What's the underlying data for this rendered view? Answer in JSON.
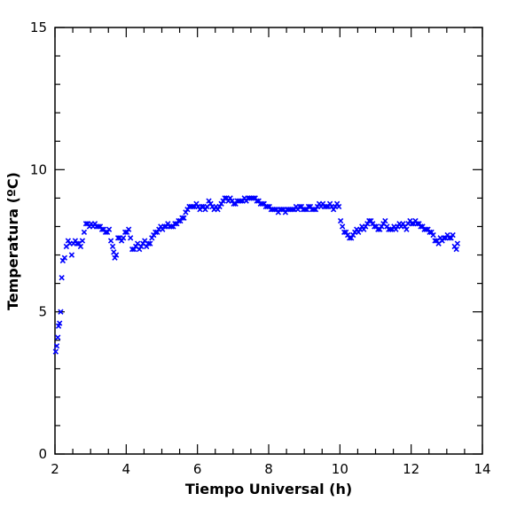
{
  "chart_data": {
    "type": "scatter",
    "xlabel": "Tiempo Universal (h)",
    "ylabel": "Temperatura (ºC)",
    "xlim": [
      2,
      14
    ],
    "ylim": [
      0,
      15
    ],
    "x_ticks": [
      2,
      4,
      6,
      8,
      10,
      12,
      14
    ],
    "y_ticks": [
      0,
      5,
      10,
      15
    ],
    "marker": "x",
    "grid": false,
    "color": "#0000ff",
    "series": [
      {
        "points": [
          [
            2.02,
            3.6
          ],
          [
            2.05,
            3.8
          ],
          [
            2.08,
            4.1
          ],
          [
            2.1,
            4.5
          ],
          [
            2.13,
            4.6
          ],
          [
            2.16,
            5.0
          ],
          [
            2.19,
            6.2
          ],
          [
            2.22,
            6.8
          ],
          [
            2.27,
            6.9
          ],
          [
            2.32,
            7.3
          ],
          [
            2.37,
            7.5
          ],
          [
            2.42,
            7.4
          ],
          [
            2.47,
            7.0
          ],
          [
            2.52,
            7.4
          ],
          [
            2.57,
            7.5
          ],
          [
            2.62,
            7.4
          ],
          [
            2.67,
            7.4
          ],
          [
            2.72,
            7.3
          ],
          [
            2.77,
            7.5
          ],
          [
            2.82,
            7.8
          ],
          [
            2.87,
            8.1
          ],
          [
            2.92,
            8.1
          ],
          [
            2.97,
            8.0
          ],
          [
            3.02,
            8.1
          ],
          [
            3.07,
            8.0
          ],
          [
            3.12,
            8.1
          ],
          [
            3.17,
            8.0
          ],
          [
            3.22,
            8.0
          ],
          [
            3.27,
            8.0
          ],
          [
            3.32,
            7.9
          ],
          [
            3.37,
            7.9
          ],
          [
            3.42,
            7.8
          ],
          [
            3.47,
            7.8
          ],
          [
            3.52,
            7.9
          ],
          [
            3.57,
            7.5
          ],
          [
            3.62,
            7.3
          ],
          [
            3.65,
            7.1
          ],
          [
            3.68,
            6.9
          ],
          [
            3.72,
            7.0
          ],
          [
            3.77,
            7.6
          ],
          [
            3.82,
            7.6
          ],
          [
            3.87,
            7.5
          ],
          [
            3.92,
            7.6
          ],
          [
            3.97,
            7.8
          ],
          [
            4.02,
            7.8
          ],
          [
            4.07,
            7.9
          ],
          [
            4.12,
            7.6
          ],
          [
            4.17,
            7.2
          ],
          [
            4.22,
            7.2
          ],
          [
            4.27,
            7.3
          ],
          [
            4.32,
            7.4
          ],
          [
            4.37,
            7.2
          ],
          [
            4.42,
            7.3
          ],
          [
            4.47,
            7.4
          ],
          [
            4.52,
            7.5
          ],
          [
            4.57,
            7.3
          ],
          [
            4.62,
            7.4
          ],
          [
            4.67,
            7.4
          ],
          [
            4.72,
            7.6
          ],
          [
            4.77,
            7.7
          ],
          [
            4.82,
            7.8
          ],
          [
            4.87,
            7.8
          ],
          [
            4.92,
            7.9
          ],
          [
            4.97,
            8.0
          ],
          [
            5.02,
            7.9
          ],
          [
            5.07,
            8.0
          ],
          [
            5.12,
            8.0
          ],
          [
            5.17,
            8.1
          ],
          [
            5.22,
            8.0
          ],
          [
            5.27,
            8.0
          ],
          [
            5.32,
            8.0
          ],
          [
            5.37,
            8.1
          ],
          [
            5.42,
            8.1
          ],
          [
            5.47,
            8.2
          ],
          [
            5.52,
            8.2
          ],
          [
            5.57,
            8.3
          ],
          [
            5.62,
            8.3
          ],
          [
            5.67,
            8.5
          ],
          [
            5.72,
            8.6
          ],
          [
            5.77,
            8.7
          ],
          [
            5.82,
            8.7
          ],
          [
            5.87,
            8.7
          ],
          [
            5.92,
            8.7
          ],
          [
            5.97,
            8.8
          ],
          [
            6.02,
            8.7
          ],
          [
            6.07,
            8.6
          ],
          [
            6.12,
            8.7
          ],
          [
            6.17,
            8.7
          ],
          [
            6.22,
            8.6
          ],
          [
            6.27,
            8.7
          ],
          [
            6.32,
            8.9
          ],
          [
            6.37,
            8.8
          ],
          [
            6.42,
            8.7
          ],
          [
            6.47,
            8.6
          ],
          [
            6.52,
            8.7
          ],
          [
            6.57,
            8.6
          ],
          [
            6.62,
            8.7
          ],
          [
            6.67,
            8.8
          ],
          [
            6.72,
            8.9
          ],
          [
            6.77,
            9.0
          ],
          [
            6.82,
            9.0
          ],
          [
            6.87,
            8.9
          ],
          [
            6.92,
            9.0
          ],
          [
            6.97,
            8.9
          ],
          [
            7.02,
            8.8
          ],
          [
            7.07,
            8.8
          ],
          [
            7.12,
            8.9
          ],
          [
            7.17,
            8.9
          ],
          [
            7.22,
            8.9
          ],
          [
            7.27,
            8.9
          ],
          [
            7.32,
            9.0
          ],
          [
            7.37,
            8.9
          ],
          [
            7.42,
            9.0
          ],
          [
            7.47,
            9.0
          ],
          [
            7.52,
            9.0
          ],
          [
            7.57,
            9.0
          ],
          [
            7.62,
            9.0
          ],
          [
            7.67,
            8.9
          ],
          [
            7.72,
            8.9
          ],
          [
            7.77,
            8.8
          ],
          [
            7.82,
            8.8
          ],
          [
            7.87,
            8.8
          ],
          [
            7.92,
            8.7
          ],
          [
            7.97,
            8.7
          ],
          [
            8.02,
            8.7
          ],
          [
            8.07,
            8.6
          ],
          [
            8.12,
            8.6
          ],
          [
            8.17,
            8.6
          ],
          [
            8.22,
            8.6
          ],
          [
            8.27,
            8.5
          ],
          [
            8.32,
            8.6
          ],
          [
            8.37,
            8.6
          ],
          [
            8.42,
            8.6
          ],
          [
            8.47,
            8.5
          ],
          [
            8.52,
            8.6
          ],
          [
            8.57,
            8.6
          ],
          [
            8.62,
            8.6
          ],
          [
            8.67,
            8.6
          ],
          [
            8.72,
            8.6
          ],
          [
            8.77,
            8.7
          ],
          [
            8.82,
            8.6
          ],
          [
            8.87,
            8.7
          ],
          [
            8.92,
            8.7
          ],
          [
            8.97,
            8.6
          ],
          [
            9.02,
            8.6
          ],
          [
            9.07,
            8.6
          ],
          [
            9.12,
            8.7
          ],
          [
            9.17,
            8.7
          ],
          [
            9.22,
            8.6
          ],
          [
            9.27,
            8.6
          ],
          [
            9.32,
            8.6
          ],
          [
            9.37,
            8.7
          ],
          [
            9.42,
            8.8
          ],
          [
            9.47,
            8.7
          ],
          [
            9.52,
            8.8
          ],
          [
            9.57,
            8.7
          ],
          [
            9.62,
            8.7
          ],
          [
            9.67,
            8.7
          ],
          [
            9.72,
            8.8
          ],
          [
            9.77,
            8.7
          ],
          [
            9.82,
            8.6
          ],
          [
            9.87,
            8.7
          ],
          [
            9.92,
            8.8
          ],
          [
            9.97,
            8.7
          ],
          [
            10.02,
            8.2
          ],
          [
            10.07,
            8.0
          ],
          [
            10.12,
            7.8
          ],
          [
            10.17,
            7.8
          ],
          [
            10.22,
            7.7
          ],
          [
            10.27,
            7.6
          ],
          [
            10.32,
            7.6
          ],
          [
            10.37,
            7.7
          ],
          [
            10.42,
            7.8
          ],
          [
            10.47,
            7.9
          ],
          [
            10.52,
            7.8
          ],
          [
            10.57,
            7.9
          ],
          [
            10.62,
            8.0
          ],
          [
            10.67,
            7.9
          ],
          [
            10.72,
            8.0
          ],
          [
            10.77,
            8.1
          ],
          [
            10.82,
            8.2
          ],
          [
            10.87,
            8.2
          ],
          [
            10.92,
            8.1
          ],
          [
            10.97,
            8.0
          ],
          [
            11.02,
            8.0
          ],
          [
            11.07,
            7.9
          ],
          [
            11.12,
            7.9
          ],
          [
            11.17,
            8.0
          ],
          [
            11.22,
            8.1
          ],
          [
            11.27,
            8.2
          ],
          [
            11.32,
            8.0
          ],
          [
            11.37,
            7.9
          ],
          [
            11.42,
            7.9
          ],
          [
            11.47,
            7.9
          ],
          [
            11.52,
            8.0
          ],
          [
            11.57,
            7.9
          ],
          [
            11.62,
            8.0
          ],
          [
            11.67,
            8.1
          ],
          [
            11.72,
            8.0
          ],
          [
            11.77,
            8.1
          ],
          [
            11.82,
            8.0
          ],
          [
            11.87,
            7.9
          ],
          [
            11.92,
            8.1
          ],
          [
            11.97,
            8.2
          ],
          [
            12.02,
            8.1
          ],
          [
            12.07,
            8.1
          ],
          [
            12.12,
            8.2
          ],
          [
            12.17,
            8.1
          ],
          [
            12.22,
            8.1
          ],
          [
            12.27,
            8.0
          ],
          [
            12.32,
            8.0
          ],
          [
            12.37,
            7.9
          ],
          [
            12.42,
            7.9
          ],
          [
            12.47,
            7.9
          ],
          [
            12.52,
            7.8
          ],
          [
            12.57,
            7.8
          ],
          [
            12.62,
            7.7
          ],
          [
            12.67,
            7.5
          ],
          [
            12.72,
            7.5
          ],
          [
            12.77,
            7.4
          ],
          [
            12.82,
            7.6
          ],
          [
            12.87,
            7.5
          ],
          [
            12.92,
            7.6
          ],
          [
            12.97,
            7.6
          ],
          [
            13.02,
            7.7
          ],
          [
            13.07,
            7.6
          ],
          [
            13.12,
            7.6
          ],
          [
            13.17,
            7.7
          ],
          [
            13.22,
            7.3
          ],
          [
            13.27,
            7.2
          ],
          [
            13.3,
            7.4
          ]
        ]
      }
    ]
  }
}
